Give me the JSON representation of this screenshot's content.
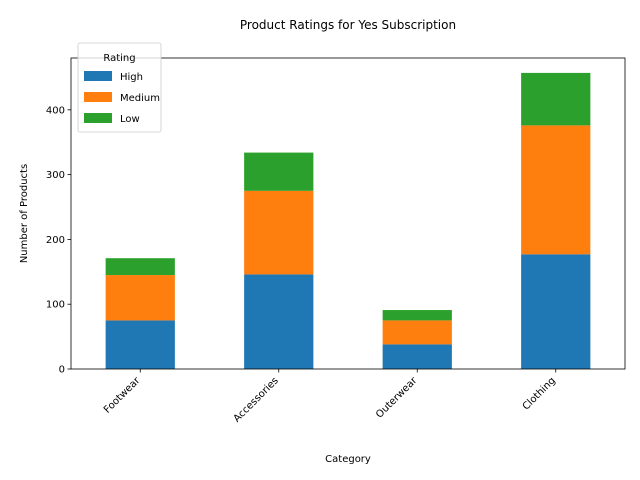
{
  "chart_data": {
    "type": "bar",
    "stacked": true,
    "title": "Product Ratings for Yes Subscription",
    "xlabel": "Category",
    "ylabel": "Number of Products",
    "categories": [
      "Footwear",
      "Accessories",
      "Outerwear",
      "Clothing"
    ],
    "series": [
      {
        "name": "High",
        "color": "#1f77b4",
        "values": [
          75,
          146,
          38,
          177
        ]
      },
      {
        "name": "Medium",
        "color": "#ff7f0e",
        "values": [
          70,
          129,
          37,
          199
        ]
      },
      {
        "name": "Low",
        "color": "#2ca02c",
        "values": [
          26,
          59,
          16,
          81
        ]
      }
    ],
    "ylim": [
      0,
      480
    ],
    "yticks": [
      0,
      100,
      200,
      300,
      400
    ],
    "legend": {
      "title": "Rating",
      "placement": "top-left"
    },
    "grid": false
  }
}
